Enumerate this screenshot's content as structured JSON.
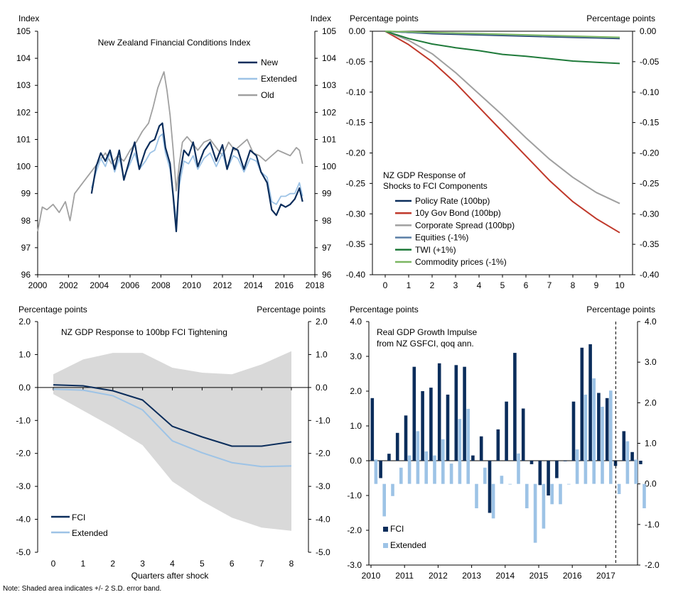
{
  "note": "Note: Shaded area indicates +/- 2 S.D. error band.",
  "colors": {
    "navy": "#0b2d5b",
    "light_blue": "#9dc3e6",
    "grey": "#a0a0a0",
    "band": "#d9d9d9",
    "red": "#c0392b",
    "steel": "#5b7fa6",
    "green": "#1f7a3a",
    "light_green": "#7bb661"
  },
  "chart_data": [
    {
      "id": "fci-index",
      "type": "line",
      "title": "New Zealand Financial Conditions Index",
      "ylabel_left": "Index",
      "ylabel_right": "Index",
      "xlim": [
        2000,
        2018
      ],
      "ylim": [
        96,
        105
      ],
      "xticks": [
        "2000",
        "2002",
        "2004",
        "2006",
        "2008",
        "2010",
        "2012",
        "2014",
        "2016",
        "2018"
      ],
      "yticks": [
        "96",
        "97",
        "98",
        "99",
        "100",
        "101",
        "102",
        "103",
        "104",
        "105"
      ],
      "legend": [
        "New",
        "Extended",
        "Old"
      ],
      "series": [
        {
          "name": "Old",
          "color_key": "grey",
          "x": [
            2000.0,
            2000.3,
            2000.6,
            2001.0,
            2001.4,
            2001.8,
            2002.1,
            2002.4,
            2002.8,
            2003.2,
            2003.6,
            2004.0,
            2004.4,
            2004.8,
            2005.2,
            2005.6,
            2006.0,
            2006.4,
            2006.8,
            2007.2,
            2007.5,
            2007.8,
            2008.0,
            2008.2,
            2008.4,
            2008.6,
            2008.8,
            2009.0,
            2009.2,
            2009.4,
            2009.7,
            2010.0,
            2010.4,
            2010.8,
            2011.2,
            2011.6,
            2012.0,
            2012.4,
            2012.8,
            2013.2,
            2013.6,
            2014.0,
            2014.4,
            2014.8,
            2015.2,
            2015.6,
            2016.0,
            2016.4,
            2016.8,
            2017.0,
            2017.2
          ],
          "values": [
            97.6,
            98.5,
            98.4,
            98.6,
            98.3,
            98.7,
            98.0,
            99.0,
            99.3,
            99.6,
            99.9,
            100.2,
            100.5,
            100.1,
            100.4,
            100.2,
            100.6,
            100.9,
            101.3,
            101.6,
            102.2,
            102.9,
            103.2,
            103.5,
            102.8,
            101.9,
            100.6,
            99.1,
            100.1,
            100.9,
            101.1,
            100.9,
            100.6,
            100.9,
            101.0,
            100.7,
            100.4,
            100.9,
            100.6,
            100.8,
            101.0,
            100.5,
            100.4,
            100.2,
            100.4,
            100.6,
            100.5,
            100.4,
            100.7,
            100.6,
            100.1
          ]
        },
        {
          "name": "Extended",
          "color_key": "light_blue",
          "x": [
            2003.5,
            2003.8,
            2004.1,
            2004.4,
            2004.7,
            2005.0,
            2005.3,
            2005.6,
            2006.0,
            2006.3,
            2006.6,
            2007.0,
            2007.3,
            2007.6,
            2007.9,
            2008.1,
            2008.3,
            2008.6,
            2008.8,
            2009.0,
            2009.2,
            2009.5,
            2009.8,
            2010.1,
            2010.4,
            2010.8,
            2011.2,
            2011.6,
            2012.0,
            2012.3,
            2012.7,
            2013.0,
            2013.4,
            2013.8,
            2014.2,
            2014.5,
            2014.9,
            2015.2,
            2015.5,
            2015.8,
            2016.1,
            2016.4,
            2016.7,
            2017.0,
            2017.2
          ],
          "values": [
            99.2,
            99.8,
            100.3,
            100.0,
            100.5,
            99.8,
            100.3,
            99.6,
            100.1,
            100.5,
            99.9,
            100.2,
            100.5,
            100.6,
            101.1,
            101.2,
            100.5,
            99.9,
            99.0,
            98.0,
            99.3,
            100.2,
            100.1,
            100.4,
            99.9,
            100.3,
            100.5,
            100.0,
            100.5,
            99.9,
            100.4,
            100.3,
            99.8,
            100.3,
            100.2,
            99.8,
            99.6,
            98.7,
            98.6,
            98.9,
            98.9,
            99.0,
            99.0,
            99.4,
            98.9
          ]
        },
        {
          "name": "New",
          "color_key": "navy",
          "x": [
            2003.5,
            2003.8,
            2004.1,
            2004.4,
            2004.7,
            2005.0,
            2005.3,
            2005.6,
            2006.0,
            2006.3,
            2006.6,
            2007.0,
            2007.3,
            2007.6,
            2007.9,
            2008.1,
            2008.3,
            2008.6,
            2008.8,
            2009.0,
            2009.2,
            2009.5,
            2009.8,
            2010.1,
            2010.4,
            2010.8,
            2011.2,
            2011.6,
            2012.0,
            2012.3,
            2012.7,
            2013.0,
            2013.4,
            2013.8,
            2014.2,
            2014.5,
            2014.9,
            2015.2,
            2015.5,
            2015.8,
            2016.1,
            2016.4,
            2016.7,
            2017.0,
            2017.2
          ],
          "values": [
            99.0,
            100.0,
            100.5,
            100.2,
            100.6,
            99.9,
            100.6,
            99.5,
            100.3,
            100.9,
            99.9,
            100.6,
            100.9,
            101.0,
            101.5,
            101.6,
            100.7,
            100.1,
            98.9,
            97.6,
            99.6,
            100.6,
            100.4,
            100.9,
            100.0,
            100.6,
            100.9,
            100.2,
            100.8,
            99.9,
            100.7,
            100.6,
            99.9,
            100.6,
            100.4,
            99.8,
            99.4,
            98.4,
            98.2,
            98.6,
            98.5,
            98.6,
            98.8,
            99.2,
            98.7
          ]
        }
      ]
    },
    {
      "id": "gdp-components",
      "type": "line",
      "ylabel_left": "Percentage points",
      "ylabel_right": "Percentage points",
      "legend_title": "NZ GDP Response of Shocks to FCI Components",
      "legend_title_lines": [
        "NZ GDP Response of",
        "Shocks to FCI Components"
      ],
      "x": [
        0,
        1,
        2,
        3,
        4,
        5,
        6,
        7,
        8,
        9,
        10
      ],
      "xticks": [
        "0",
        "1",
        "2",
        "3",
        "4",
        "5",
        "6",
        "7",
        "8",
        "9",
        "10"
      ],
      "ylim": [
        -0.4,
        0
      ],
      "yticks": [
        "0.00",
        "-0.05",
        "-0.10",
        "-0.15",
        "-0.20",
        "-0.25",
        "-0.30",
        "-0.35",
        "-0.40"
      ],
      "series": [
        {
          "name": "Policy Rate (100bp)",
          "color_key": "navy",
          "values": [
            0,
            -0.002,
            -0.004,
            -0.005,
            -0.006,
            -0.007,
            -0.008,
            -0.009,
            -0.01,
            -0.011,
            -0.012
          ]
        },
        {
          "name": "10y Gov Bond (100bp)",
          "color_key": "red",
          "values": [
            0,
            -0.022,
            -0.05,
            -0.085,
            -0.125,
            -0.165,
            -0.205,
            -0.245,
            -0.28,
            -0.308,
            -0.331
          ]
        },
        {
          "name": "Corporate Spread (100bp)",
          "color_key": "grey",
          "values": [
            0,
            -0.015,
            -0.037,
            -0.068,
            -0.103,
            -0.138,
            -0.175,
            -0.21,
            -0.24,
            -0.265,
            -0.283
          ]
        },
        {
          "name": "Equities (-1%)",
          "color_key": "steel",
          "values": [
            0,
            -0.002,
            -0.003,
            -0.004,
            -0.005,
            -0.006,
            -0.007,
            -0.008,
            -0.009,
            -0.01,
            -0.011
          ]
        },
        {
          "name": "TWI (+1%)",
          "color_key": "green",
          "values": [
            0,
            -0.012,
            -0.021,
            -0.027,
            -0.032,
            -0.038,
            -0.041,
            -0.045,
            -0.049,
            -0.051,
            -0.053
          ]
        },
        {
          "name": "Commodity prices (-1%)",
          "color_key": "light_green",
          "values": [
            0,
            -0.001,
            -0.002,
            -0.003,
            -0.004,
            -0.005,
            -0.006,
            -0.007,
            -0.008,
            -0.009,
            -0.01
          ]
        }
      ]
    },
    {
      "id": "gdp-fci-tightening",
      "type": "line",
      "title": "NZ GDP Response to 100bp FCI Tightening",
      "ylabel_left": "Percentage points",
      "ylabel_right": "Percentage points",
      "xlabel": "Quarters after shock",
      "x": [
        0,
        1,
        2,
        3,
        4,
        5,
        6,
        7,
        8
      ],
      "xticks": [
        "0",
        "1",
        "2",
        "3",
        "4",
        "5",
        "6",
        "7",
        "8"
      ],
      "ylim": [
        -5,
        2
      ],
      "yticks": [
        "2.0",
        "1.0",
        "0.0",
        "-1.0",
        "-2.0",
        "-3.0",
        "-4.0",
        "-5.0"
      ],
      "band_upper": [
        0.4,
        0.85,
        1.05,
        1.05,
        0.6,
        0.45,
        0.4,
        0.7,
        1.1
      ],
      "band_lower": [
        -0.2,
        -0.7,
        -1.2,
        -1.75,
        -2.85,
        -3.45,
        -3.95,
        -4.25,
        -4.35
      ],
      "series": [
        {
          "name": "FCI",
          "color_key": "navy",
          "values": [
            0.08,
            0.05,
            -0.1,
            -0.38,
            -1.18,
            -1.5,
            -1.78,
            -1.78,
            -1.65
          ]
        },
        {
          "name": "Extended",
          "color_key": "light_blue",
          "values": [
            -0.05,
            -0.08,
            -0.25,
            -0.68,
            -1.62,
            -1.98,
            -2.28,
            -2.4,
            -2.38
          ]
        }
      ]
    },
    {
      "id": "gdp-growth-impulse",
      "type": "bar",
      "title": "Real GDP Growth Impulse from NZ GSFCI, qoq ann.",
      "title_lines": [
        "Real GDP Growth Impulse",
        "from NZ GSFCI, qoq ann."
      ],
      "ylabel_left": "Percentage points",
      "ylabel_right": "Percentage points",
      "xticks": [
        "2010",
        "2011",
        "2012",
        "2013",
        "2014",
        "2015",
        "2016",
        "2017"
      ],
      "left_axis": {
        "ylim": [
          -3,
          4
        ],
        "yticks": [
          "4.0",
          "3.0",
          "2.0",
          "1.0",
          "0.0",
          "-1.0",
          "-2.0",
          "-3.0"
        ]
      },
      "right_axis": {
        "ylim": [
          -2,
          4
        ],
        "yticks": [
          "4.0",
          "3.0",
          "2.0",
          "1.0",
          "0.0",
          "-1.0",
          "-2.0"
        ]
      },
      "vertical_marker": "2017",
      "series": [
        {
          "name": "FCI",
          "color_key": "navy",
          "axis": "left",
          "values": [
            1.8,
            -0.5,
            0.2,
            0.8,
            1.3,
            2.7,
            2.0,
            2.1,
            2.8,
            1.9,
            2.75,
            2.7,
            0.15,
            0.7,
            -1.5,
            0.9,
            1.7,
            3.1,
            1.5,
            -0.1,
            -0.7,
            -1.0,
            -0.5,
            0.0,
            1.7,
            3.25,
            3.35,
            1.95,
            1.8,
            -0.15,
            0.85,
            0.25,
            -0.1
          ]
        },
        {
          "name": "Extended",
          "color_key": "light_blue",
          "axis": "right",
          "values": [
            0.6,
            -0.8,
            -0.3,
            0.4,
            0.7,
            1.3,
            0.8,
            0.7,
            1.1,
            0.5,
            1.6,
            1.85,
            -0.6,
            0.4,
            -0.85,
            0.2,
            0.0,
            0.75,
            -0.6,
            -1.45,
            -1.1,
            -0.5,
            -0.5,
            0.0,
            0.85,
            2.2,
            2.6,
            1.9,
            2.3,
            -0.25,
            1.05,
            0.6,
            -0.6
          ]
        }
      ]
    }
  ]
}
